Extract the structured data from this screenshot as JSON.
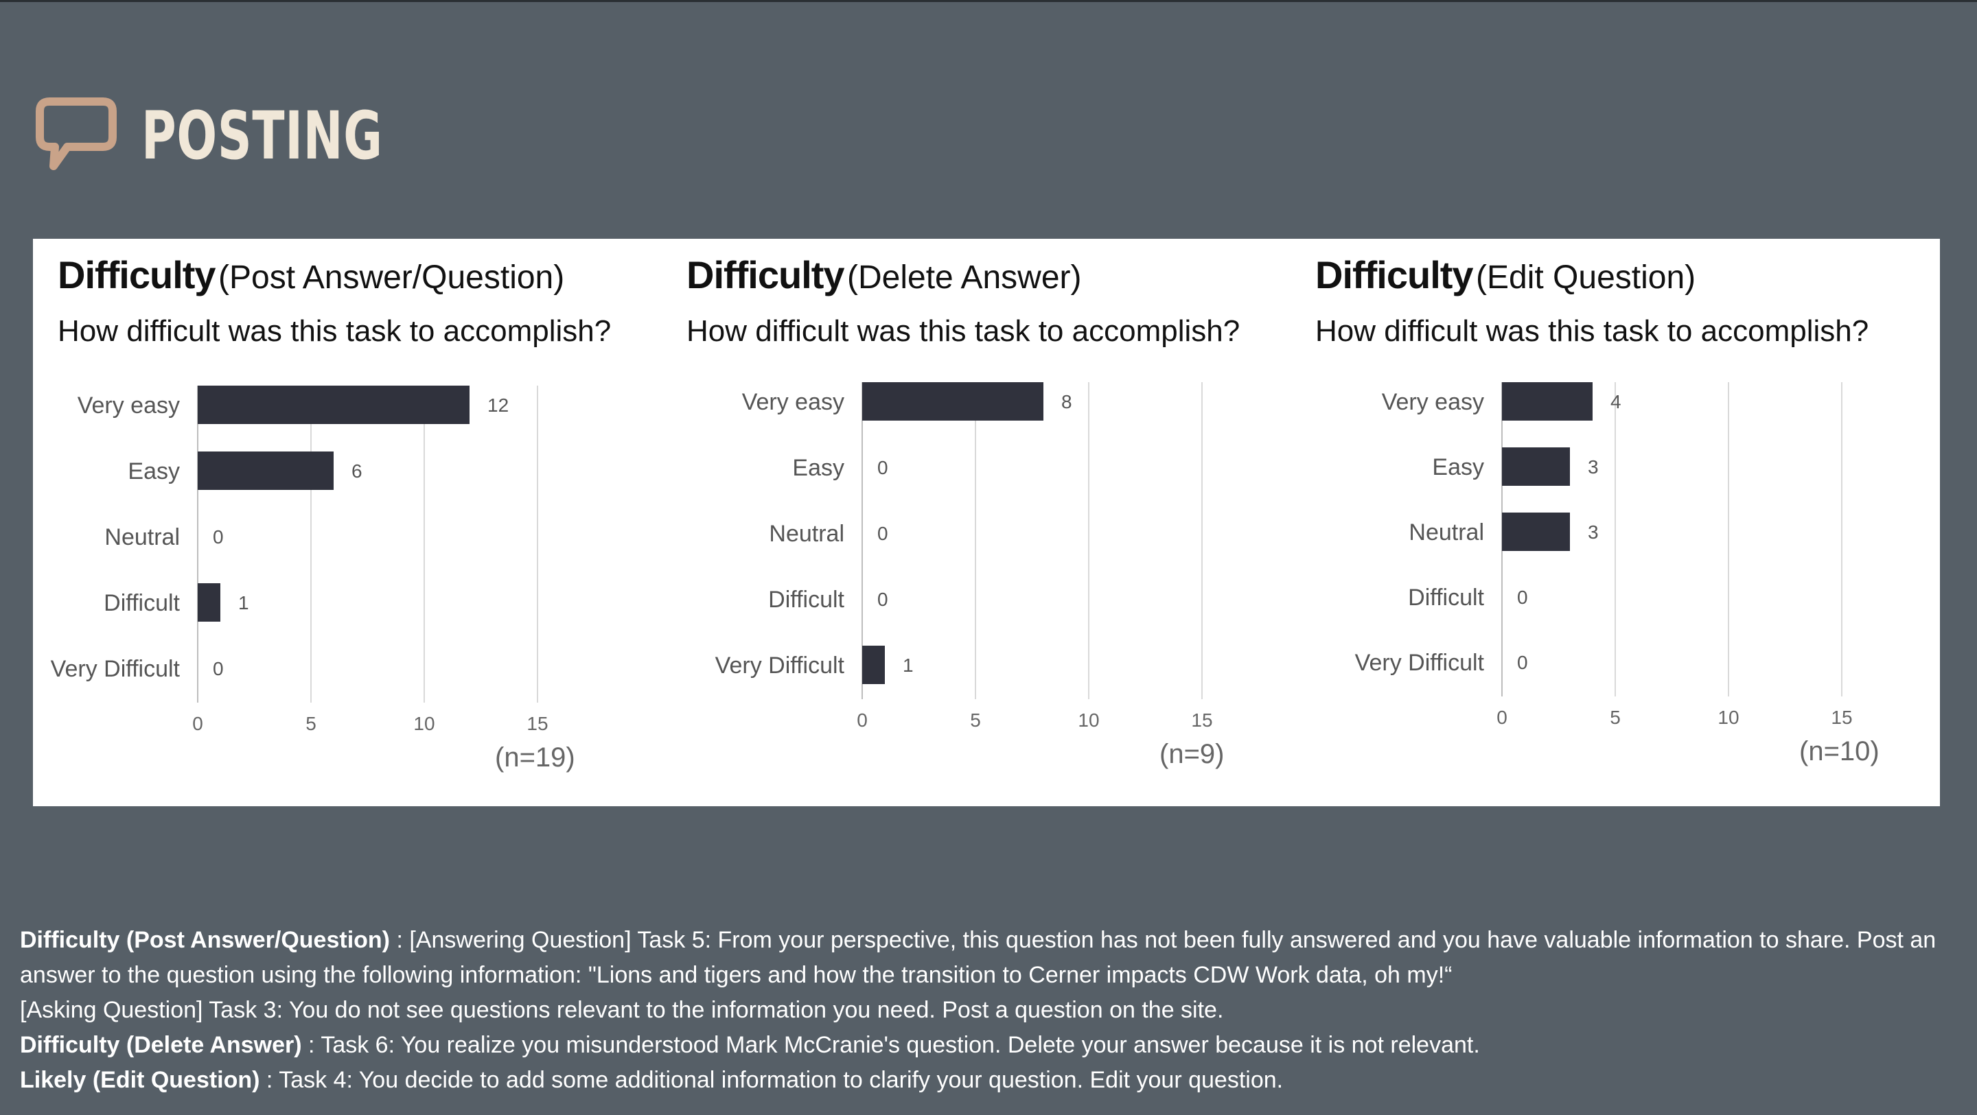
{
  "slide": {
    "title": "POSTING",
    "icon": "speech-bubble-icon",
    "accent_color": "#c9a389"
  },
  "chart_data": [
    {
      "type": "bar",
      "orientation": "horizontal",
      "title_bold": "Difficulty",
      "title_rest": "(Post Answer/Question)",
      "subtitle": "How difficult was this task to accomplish?",
      "categories": [
        "Very easy",
        "Easy",
        "Neutral",
        "Difficult",
        "Very Difficult"
      ],
      "values": [
        12,
        6,
        0,
        1,
        0
      ],
      "xlim": [
        0,
        15
      ],
      "xticks": [
        0,
        5,
        10,
        15
      ],
      "grid": true,
      "sample_size": "(n=19)"
    },
    {
      "type": "bar",
      "orientation": "horizontal",
      "title_bold": "Difficulty",
      "title_rest": "(Delete Answer)",
      "subtitle": "How difficult was this task to accomplish?",
      "categories": [
        "Very easy",
        "Easy",
        "Neutral",
        "Difficult",
        "Very Difficult"
      ],
      "values": [
        8,
        0,
        0,
        0,
        1
      ],
      "xlim": [
        0,
        15
      ],
      "xticks": [
        0,
        5,
        10,
        15
      ],
      "grid": true,
      "sample_size": "(n=9)"
    },
    {
      "type": "bar",
      "orientation": "horizontal",
      "title_bold": "Difficulty",
      "title_rest": "(Edit Question)",
      "subtitle": "How difficult was this task to accomplish?",
      "categories": [
        "Very easy",
        "Easy",
        "Neutral",
        "Difficult",
        "Very Difficult"
      ],
      "values": [
        4,
        3,
        3,
        0,
        0
      ],
      "xlim": [
        0,
        15
      ],
      "xticks": [
        0,
        5,
        10,
        15
      ],
      "grid": true,
      "sample_size": "(n=10)"
    }
  ],
  "notes": [
    {
      "bold": "Difficulty (Post Answer/Question)",
      "text": " : [Answering Question] Task 5: From your perspective, this question has not been fully answered and you have valuable information to share. Post an answer to the question using the following information: \"Lions and tigers and how the transition to Cerner impacts CDW Work data, oh my!“"
    },
    {
      "bold": "",
      "text": "[Asking Question] Task 3: You do not see questions relevant to the information you need. Post a question on the site."
    },
    {
      "bold": "Difficulty (Delete Answer)",
      "text": " : Task 6: You realize you misunderstood Mark McCranie's question. Delete your answer because it is not relevant."
    },
    {
      "bold": "Likely (Edit Question)",
      "text": " : Task 4: You decide to add some additional information to clarify your question. Edit your question."
    }
  ],
  "colors": {
    "background": "#565f67",
    "bar": "#30323d",
    "grid": "#d9d9d9",
    "panel": "#ffffff"
  }
}
